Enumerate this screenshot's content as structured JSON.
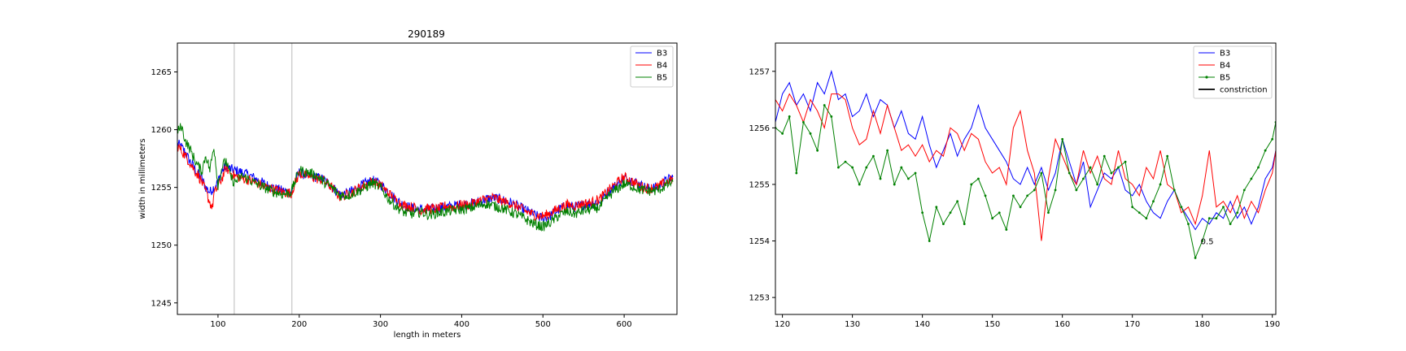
{
  "chart_data": [
    {
      "type": "line",
      "title": "290189",
      "xlabel": "length in meters",
      "ylabel": "width in millimeters",
      "xlim": [
        50,
        665
      ],
      "ylim": [
        1244,
        1267.5
      ],
      "xticks": [
        100,
        200,
        300,
        400,
        500,
        600
      ],
      "yticks": [
        1245,
        1250,
        1255,
        1260,
        1265
      ],
      "vlines": [
        120,
        191
      ],
      "grid": false,
      "legend_position": "upper right",
      "series": [
        {
          "name": "B3",
          "color": "#0000ff",
          "x": [
            50,
            55,
            60,
            65,
            70,
            75,
            80,
            85,
            90,
            95,
            100,
            105,
            110,
            115,
            120,
            130,
            140,
            150,
            160,
            170,
            180,
            190,
            200,
            210,
            220,
            230,
            240,
            250,
            260,
            270,
            280,
            290,
            300,
            310,
            320,
            330,
            340,
            350,
            360,
            370,
            380,
            390,
            400,
            410,
            420,
            430,
            440,
            450,
            460,
            470,
            480,
            490,
            500,
            510,
            520,
            530,
            540,
            550,
            560,
            570,
            580,
            590,
            600,
            610,
            620,
            630,
            640,
            650,
            660
          ],
          "y": [
            1258.8,
            1258.5,
            1258.0,
            1257.3,
            1256.8,
            1256.2,
            1255.8,
            1255.0,
            1254.6,
            1255.0,
            1255.5,
            1256.4,
            1256.9,
            1256.6,
            1256.5,
            1256.3,
            1256.0,
            1255.6,
            1255.2,
            1254.9,
            1254.7,
            1254.6,
            1256.3,
            1256.0,
            1255.9,
            1255.7,
            1255.1,
            1254.4,
            1254.5,
            1254.9,
            1255.3,
            1255.6,
            1255.3,
            1254.6,
            1253.9,
            1253.4,
            1253.2,
            1253.1,
            1253.1,
            1253.2,
            1253.3,
            1253.4,
            1253.5,
            1253.6,
            1253.7,
            1254.0,
            1254.1,
            1253.9,
            1253.7,
            1253.3,
            1253.0,
            1252.6,
            1252.3,
            1252.6,
            1253.1,
            1253.4,
            1253.3,
            1253.5,
            1253.6,
            1253.8,
            1254.6,
            1255.2,
            1255.8,
            1255.6,
            1255.2,
            1254.9,
            1255.0,
            1255.5,
            1255.9
          ]
        },
        {
          "name": "B4",
          "color": "#ff0000",
          "x": [
            50,
            55,
            60,
            65,
            70,
            75,
            80,
            85,
            90,
            93,
            95,
            100,
            105,
            110,
            115,
            120,
            130,
            140,
            150,
            160,
            170,
            180,
            190,
            200,
            210,
            220,
            230,
            240,
            250,
            260,
            270,
            280,
            290,
            300,
            310,
            320,
            330,
            340,
            350,
            360,
            370,
            380,
            390,
            400,
            410,
            420,
            430,
            440,
            450,
            460,
            470,
            480,
            490,
            500,
            510,
            520,
            530,
            540,
            550,
            560,
            570,
            580,
            590,
            600,
            610,
            620,
            630,
            640,
            650,
            660
          ],
          "y": [
            1258.6,
            1258.2,
            1257.7,
            1257.2,
            1256.6,
            1256.1,
            1255.5,
            1254.6,
            1253.7,
            1253.2,
            1254.4,
            1255.1,
            1255.8,
            1256.7,
            1256.3,
            1256.0,
            1255.8,
            1255.6,
            1255.3,
            1255.0,
            1254.8,
            1254.6,
            1254.5,
            1256.2,
            1256.0,
            1255.8,
            1255.6,
            1255.0,
            1254.2,
            1254.4,
            1254.8,
            1255.2,
            1255.5,
            1255.2,
            1254.5,
            1253.8,
            1253.4,
            1253.3,
            1253.0,
            1253.2,
            1253.1,
            1253.4,
            1253.3,
            1253.5,
            1253.5,
            1253.8,
            1254.0,
            1254.1,
            1253.8,
            1253.6,
            1253.3,
            1252.9,
            1252.6,
            1252.5,
            1252.8,
            1253.2,
            1253.5,
            1253.4,
            1253.6,
            1253.7,
            1254.0,
            1254.7,
            1255.3,
            1255.9,
            1255.5,
            1255.1,
            1254.9,
            1255.0,
            1255.4,
            1255.7
          ]
        },
        {
          "name": "B5",
          "color": "#008000",
          "x": [
            50,
            55,
            60,
            65,
            70,
            75,
            80,
            85,
            90,
            95,
            100,
            105,
            110,
            115,
            120,
            130,
            140,
            150,
            160,
            170,
            180,
            190,
            200,
            210,
            220,
            230,
            240,
            250,
            260,
            270,
            280,
            290,
            300,
            310,
            320,
            330,
            340,
            350,
            360,
            370,
            380,
            390,
            400,
            410,
            420,
            430,
            440,
            450,
            460,
            470,
            480,
            490,
            500,
            510,
            520,
            530,
            540,
            550,
            560,
            570,
            580,
            590,
            600,
            610,
            620,
            630,
            640,
            650,
            660
          ],
          "y": [
            1259.8,
            1260.3,
            1259.0,
            1258.4,
            1257.6,
            1256.9,
            1256.4,
            1257.8,
            1256.5,
            1258.6,
            1255.2,
            1256.8,
            1257.3,
            1256.0,
            1255.4,
            1256.0,
            1255.6,
            1255.2,
            1254.9,
            1254.6,
            1254.4,
            1254.6,
            1256.5,
            1256.3,
            1256.1,
            1255.5,
            1255.0,
            1254.3,
            1254.3,
            1254.6,
            1254.9,
            1255.4,
            1255.0,
            1254.0,
            1253.3,
            1252.8,
            1252.7,
            1252.9,
            1252.6,
            1252.8,
            1252.9,
            1253.0,
            1253.1,
            1253.2,
            1253.4,
            1253.6,
            1253.4,
            1253.2,
            1252.9,
            1252.6,
            1252.2,
            1251.8,
            1251.6,
            1252.0,
            1252.6,
            1252.9,
            1252.7,
            1253.0,
            1253.1,
            1253.3,
            1254.2,
            1254.8,
            1255.3,
            1255.1,
            1254.8,
            1254.7,
            1254.7,
            1255.1,
            1255.5
          ]
        }
      ]
    },
    {
      "type": "line",
      "title": "",
      "xlabel": "",
      "ylabel": "",
      "xlim": [
        119,
        190.5
      ],
      "ylim": [
        1252.7,
        1257.5
      ],
      "xticks": [
        120,
        130,
        140,
        150,
        160,
        170,
        180,
        190
      ],
      "yticks": [
        1253,
        1254,
        1255,
        1256,
        1257
      ],
      "grid": false,
      "legend_position": "upper right",
      "annotations": [
        {
          "text": "0.5",
          "x": 180,
          "y": 1254
        }
      ],
      "series": [
        {
          "name": "B3",
          "color": "#0000ff",
          "marker": "none",
          "x": [
            119,
            120,
            121,
            122,
            123,
            124,
            125,
            126,
            127,
            128,
            129,
            130,
            131,
            132,
            133,
            134,
            135,
            136,
            137,
            138,
            139,
            140,
            141,
            142,
            143,
            144,
            145,
            146,
            147,
            148,
            149,
            150,
            151,
            152,
            153,
            154,
            155,
            156,
            157,
            158,
            159,
            160,
            161,
            162,
            163,
            164,
            165,
            166,
            167,
            168,
            169,
            170,
            171,
            172,
            173,
            174,
            175,
            176,
            177,
            178,
            179,
            180,
            181,
            182,
            183,
            184,
            185,
            186,
            187,
            188,
            189,
            190,
            190.5
          ],
          "y": [
            1256.1,
            1256.6,
            1256.8,
            1256.4,
            1256.6,
            1256.3,
            1256.8,
            1256.6,
            1257.0,
            1256.5,
            1256.6,
            1256.2,
            1256.3,
            1256.6,
            1256.2,
            1256.5,
            1256.4,
            1256.0,
            1256.3,
            1255.9,
            1255.8,
            1256.2,
            1255.7,
            1255.3,
            1255.6,
            1255.9,
            1255.5,
            1255.8,
            1256.0,
            1256.4,
            1256.0,
            1255.8,
            1255.6,
            1255.4,
            1255.1,
            1255.0,
            1255.3,
            1255.0,
            1255.3,
            1254.9,
            1255.2,
            1255.8,
            1255.4,
            1255.0,
            1255.4,
            1254.6,
            1254.9,
            1255.2,
            1255.1,
            1255.3,
            1254.9,
            1254.8,
            1255.0,
            1254.7,
            1254.5,
            1254.4,
            1254.7,
            1254.9,
            1254.6,
            1254.4,
            1254.2,
            1254.4,
            1254.3,
            1254.5,
            1254.4,
            1254.7,
            1254.4,
            1254.6,
            1254.3,
            1254.6,
            1255.1,
            1255.3,
            1255.6
          ]
        },
        {
          "name": "B4",
          "color": "#ff0000",
          "marker": "none",
          "x": [
            119,
            120,
            121,
            122,
            123,
            124,
            125,
            126,
            127,
            128,
            129,
            130,
            131,
            132,
            133,
            134,
            135,
            136,
            137,
            138,
            139,
            140,
            141,
            142,
            143,
            144,
            145,
            146,
            147,
            148,
            149,
            150,
            151,
            152,
            153,
            154,
            155,
            156,
            157,
            158,
            159,
            160,
            161,
            162,
            163,
            164,
            165,
            166,
            167,
            168,
            169,
            170,
            171,
            172,
            173,
            174,
            175,
            176,
            177,
            178,
            179,
            180,
            181,
            182,
            183,
            184,
            185,
            186,
            187,
            188,
            189,
            190,
            190.5
          ],
          "y": [
            1256.5,
            1256.3,
            1256.6,
            1256.4,
            1256.1,
            1256.5,
            1256.3,
            1256.0,
            1256.6,
            1256.6,
            1256.5,
            1256.0,
            1255.7,
            1255.8,
            1256.3,
            1255.9,
            1256.4,
            1256.0,
            1255.6,
            1255.7,
            1255.5,
            1255.7,
            1255.4,
            1255.6,
            1255.5,
            1256.0,
            1255.9,
            1255.6,
            1255.9,
            1255.8,
            1255.4,
            1255.2,
            1255.3,
            1255.0,
            1256.0,
            1256.3,
            1255.6,
            1255.2,
            1254.0,
            1255.1,
            1255.8,
            1255.5,
            1255.2,
            1255.0,
            1255.6,
            1255.2,
            1255.5,
            1255.1,
            1255.0,
            1255.6,
            1255.1,
            1255.0,
            1254.8,
            1255.3,
            1255.1,
            1255.6,
            1255.0,
            1254.9,
            1254.5,
            1254.6,
            1254.3,
            1254.8,
            1255.6,
            1254.6,
            1254.7,
            1254.5,
            1254.8,
            1254.4,
            1254.7,
            1254.5,
            1254.9,
            1255.2,
            1255.6
          ]
        },
        {
          "name": "B5",
          "color": "#008000",
          "marker": "dot",
          "x": [
            119,
            120,
            121,
            122,
            123,
            124,
            125,
            126,
            127,
            128,
            129,
            130,
            131,
            132,
            133,
            134,
            135,
            136,
            137,
            138,
            139,
            140,
            141,
            142,
            143,
            144,
            145,
            146,
            147,
            148,
            149,
            150,
            151,
            152,
            153,
            154,
            155,
            156,
            157,
            158,
            159,
            160,
            161,
            162,
            163,
            164,
            165,
            166,
            167,
            168,
            169,
            170,
            171,
            172,
            173,
            174,
            175,
            176,
            177,
            178,
            179,
            180,
            181,
            182,
            183,
            184,
            185,
            186,
            187,
            188,
            189,
            190,
            190.5
          ],
          "y": [
            1256.0,
            1255.9,
            1256.2,
            1255.2,
            1256.1,
            1255.9,
            1255.6,
            1256.4,
            1256.2,
            1255.3,
            1255.4,
            1255.3,
            1255.0,
            1255.3,
            1255.5,
            1255.1,
            1255.6,
            1255.0,
            1255.3,
            1255.1,
            1255.2,
            1254.5,
            1254.0,
            1254.6,
            1254.3,
            1254.5,
            1254.7,
            1254.3,
            1255.0,
            1255.1,
            1254.8,
            1254.4,
            1254.5,
            1254.2,
            1254.8,
            1254.6,
            1254.8,
            1254.9,
            1255.2,
            1254.5,
            1254.9,
            1255.8,
            1255.2,
            1254.9,
            1255.1,
            1255.3,
            1255.0,
            1255.5,
            1255.2,
            1255.3,
            1255.4,
            1254.6,
            1254.5,
            1254.4,
            1254.7,
            1255.0,
            1255.5,
            1254.9,
            1254.6,
            1254.3,
            1253.7,
            1254.0,
            1254.4,
            1254.4,
            1254.6,
            1254.3,
            1254.5,
            1254.9,
            1255.1,
            1255.3,
            1255.6,
            1255.8,
            1256.1
          ]
        }
      ],
      "legend_extra": [
        {
          "name": "constriction",
          "color": "#000000"
        }
      ]
    }
  ]
}
